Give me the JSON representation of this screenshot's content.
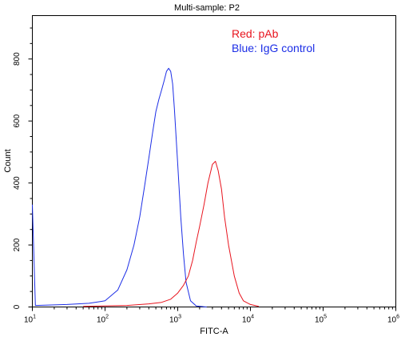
{
  "chart_data": {
    "type": "line",
    "title": "Multi-sample: P2",
    "xlabel": "FITC-A",
    "ylabel": "Count",
    "x_scale": "log",
    "xlim": [
      10,
      1000000
    ],
    "ylim": [
      0,
      940
    ],
    "x_ticks": [
      {
        "value": 10,
        "base": "10",
        "exp": "1"
      },
      {
        "value": 100,
        "base": "10",
        "exp": "2"
      },
      {
        "value": 1000,
        "base": "10",
        "exp": "3"
      },
      {
        "value": 10000,
        "base": "10",
        "exp": "4"
      },
      {
        "value": 100000,
        "base": "10",
        "exp": "5"
      },
      {
        "value": 1000000,
        "base": "10",
        "exp": "6"
      }
    ],
    "y_ticks": [
      0,
      200,
      400,
      600,
      800
    ],
    "legend": [
      {
        "label": "Red: pAb",
        "color": "#e8141e"
      },
      {
        "label": "Blue: IgG control",
        "color": "#1c2ee6"
      }
    ],
    "series": [
      {
        "color": "#1c2ee6",
        "x": [
          10,
          11,
          30,
          60,
          100,
          150,
          200,
          250,
          300,
          350,
          400,
          450,
          500,
          550,
          600,
          650,
          700,
          750,
          800,
          850,
          900,
          1000,
          1100,
          1200,
          1300,
          1500,
          1800,
          2500
        ],
        "y": [
          330,
          5,
          8,
          12,
          20,
          55,
          120,
          200,
          290,
          390,
          480,
          560,
          630,
          670,
          700,
          730,
          760,
          770,
          760,
          720,
          640,
          460,
          290,
          170,
          80,
          20,
          3,
          0
        ]
      },
      {
        "color": "#e8141e",
        "x": [
          50,
          200,
          400,
          600,
          800,
          1000,
          1200,
          1400,
          1600,
          1800,
          2000,
          2300,
          2600,
          3000,
          3300,
          3600,
          4000,
          4400,
          5000,
          6000,
          7000,
          8000,
          10000,
          13000
        ],
        "y": [
          2,
          5,
          10,
          15,
          25,
          45,
          70,
          100,
          150,
          210,
          260,
          330,
          400,
          460,
          470,
          440,
          380,
          290,
          200,
          100,
          45,
          20,
          8,
          2
        ]
      }
    ]
  }
}
